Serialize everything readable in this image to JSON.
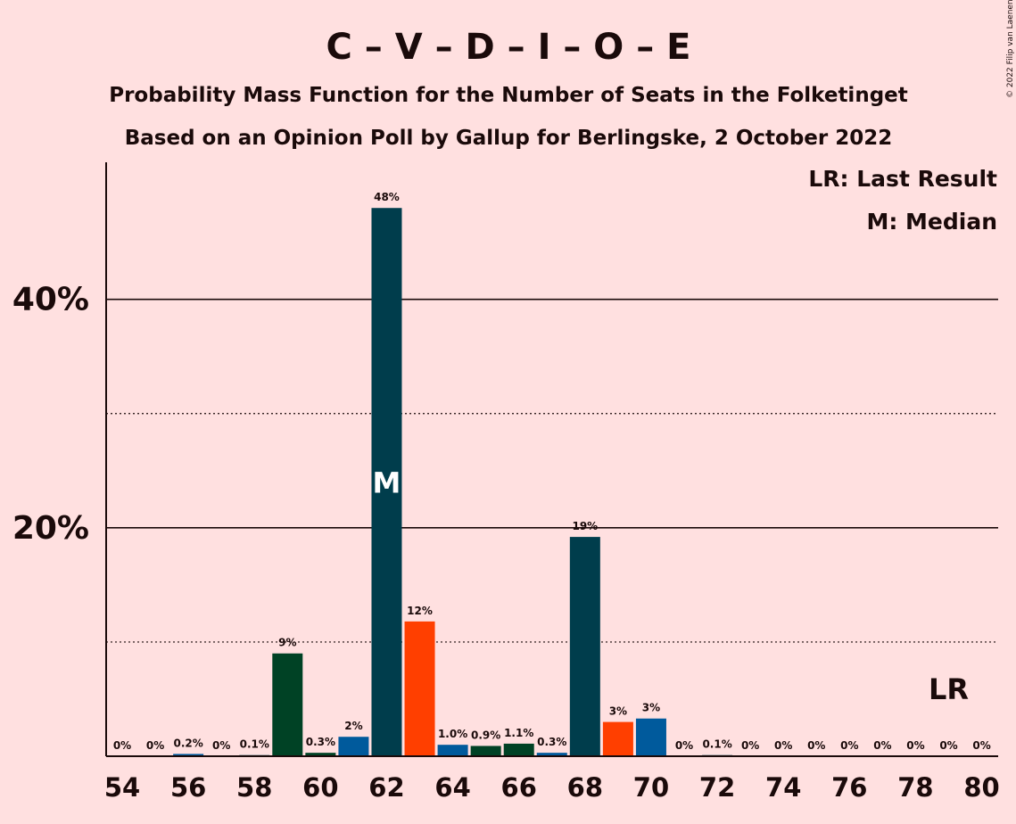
{
  "chart_data": {
    "type": "bar",
    "title": "C – V – D – I – O – E",
    "subtitle_1": "Probability Mass Function for the Number of Seats in the Folketinget",
    "subtitle_2": "Based on an Opinion Poll by Gallup for Berlingske, 2 October 2022",
    "copyright": "© 2022 Filip van Laenen",
    "legend": {
      "last_result": "LR: Last Result",
      "median": "M: Median",
      "placement": "top-right"
    },
    "markers": {
      "median_label": "M",
      "median_seat": 62,
      "lr_label": "LR",
      "lr_seat": 79
    },
    "ylim": [
      0,
      52
    ],
    "y_ticks": [
      {
        "value": 20,
        "label": "20%"
      },
      {
        "value": 40,
        "label": "40%"
      }
    ],
    "y_dotted": [
      10,
      30
    ],
    "x_tick_labels": [
      "54",
      "56",
      "58",
      "60",
      "62",
      "64",
      "66",
      "68",
      "70",
      "72",
      "74",
      "76",
      "78",
      "80"
    ],
    "palette": [
      "#003D4C",
      "#FF3F00",
      "#005A9C",
      "#004225"
    ],
    "bars": [
      {
        "seat": 54,
        "value": 0,
        "label": "0%",
        "color": "#003D4C"
      },
      {
        "seat": 55,
        "value": 0,
        "label": "0%",
        "color": "#FF3F00"
      },
      {
        "seat": 56,
        "value": 0.2,
        "label": "0.2%",
        "color": "#005A9C"
      },
      {
        "seat": 57,
        "value": 0,
        "label": "0%",
        "color": "#004225"
      },
      {
        "seat": 58,
        "value": 0.1,
        "label": "0.1%",
        "color": "#003D4C"
      },
      {
        "seat": 59,
        "value": 9,
        "label": "9%",
        "color": "#004225"
      },
      {
        "seat": 60,
        "value": 0.3,
        "label": "0.3%",
        "color": "#004225"
      },
      {
        "seat": 61,
        "value": 1.7,
        "label": "2%",
        "color": "#005A9C"
      },
      {
        "seat": 62,
        "value": 48,
        "label": "48%",
        "color": "#003D4C"
      },
      {
        "seat": 63,
        "value": 11.8,
        "label": "12%",
        "color": "#FF3F00"
      },
      {
        "seat": 64,
        "value": 1.0,
        "label": "1.0%",
        "color": "#005A9C"
      },
      {
        "seat": 65,
        "value": 0.9,
        "label": "0.9%",
        "color": "#004225"
      },
      {
        "seat": 66,
        "value": 1.1,
        "label": "1.1%",
        "color": "#004225"
      },
      {
        "seat": 67,
        "value": 0.3,
        "label": "0.3%",
        "color": "#005A9C"
      },
      {
        "seat": 68,
        "value": 19.2,
        "label": "19%",
        "color": "#003D4C"
      },
      {
        "seat": 69,
        "value": 3.0,
        "label": "3%",
        "color": "#FF3F00"
      },
      {
        "seat": 70,
        "value": 3.3,
        "label": "3%",
        "color": "#005A9C"
      },
      {
        "seat": 71,
        "value": 0,
        "label": "0%",
        "color": "#004225"
      },
      {
        "seat": 72,
        "value": 0.1,
        "label": "0.1%",
        "color": "#003D4C"
      },
      {
        "seat": 73,
        "value": 0,
        "label": "0%",
        "color": "#FF3F00"
      },
      {
        "seat": 74,
        "value": 0,
        "label": "0%",
        "color": "#005A9C"
      },
      {
        "seat": 75,
        "value": 0,
        "label": "0%",
        "color": "#004225"
      },
      {
        "seat": 76,
        "value": 0,
        "label": "0%",
        "color": "#003D4C"
      },
      {
        "seat": 77,
        "value": 0,
        "label": "0%",
        "color": "#FF3F00"
      },
      {
        "seat": 78,
        "value": 0,
        "label": "0%",
        "color": "#005A9C"
      },
      {
        "seat": 79,
        "value": 0,
        "label": "0%",
        "color": "#004225"
      },
      {
        "seat": 80,
        "value": 0,
        "label": "0%",
        "color": "#003D4C"
      }
    ]
  }
}
